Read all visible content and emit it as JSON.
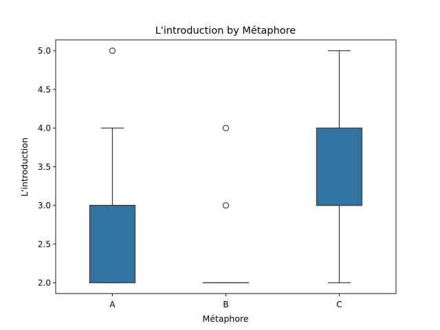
{
  "chart_data": {
    "type": "box",
    "title": "L'introduction by Métaphore",
    "xlabel": "Métaphore",
    "ylabel": "L'introduction",
    "ylim": [
      1.86,
      5.14
    ],
    "yticks": [
      "2.0",
      "2.5",
      "3.0",
      "3.5",
      "4.0",
      "4.5",
      "5.0"
    ],
    "grid": false,
    "legend": "none",
    "box_color": "#3274a1",
    "line_color": "#3f3f3f",
    "categories": [
      "A",
      "B",
      "C"
    ],
    "boxes": [
      {
        "category": "A",
        "whisker_low": 2.0,
        "q1": 2.0,
        "median": 3.0,
        "q3": 3.0,
        "whisker_high": 4.0,
        "outliers": [
          5.0
        ]
      },
      {
        "category": "B",
        "whisker_low": 2.0,
        "q1": 2.0,
        "median": 2.0,
        "q3": 2.0,
        "whisker_high": 2.0,
        "outliers": [
          3.0,
          4.0
        ]
      },
      {
        "category": "C",
        "whisker_low": 2.0,
        "q1": 3.0,
        "median": 3.0,
        "q3": 4.0,
        "whisker_high": 5.0,
        "outliers": []
      }
    ]
  }
}
